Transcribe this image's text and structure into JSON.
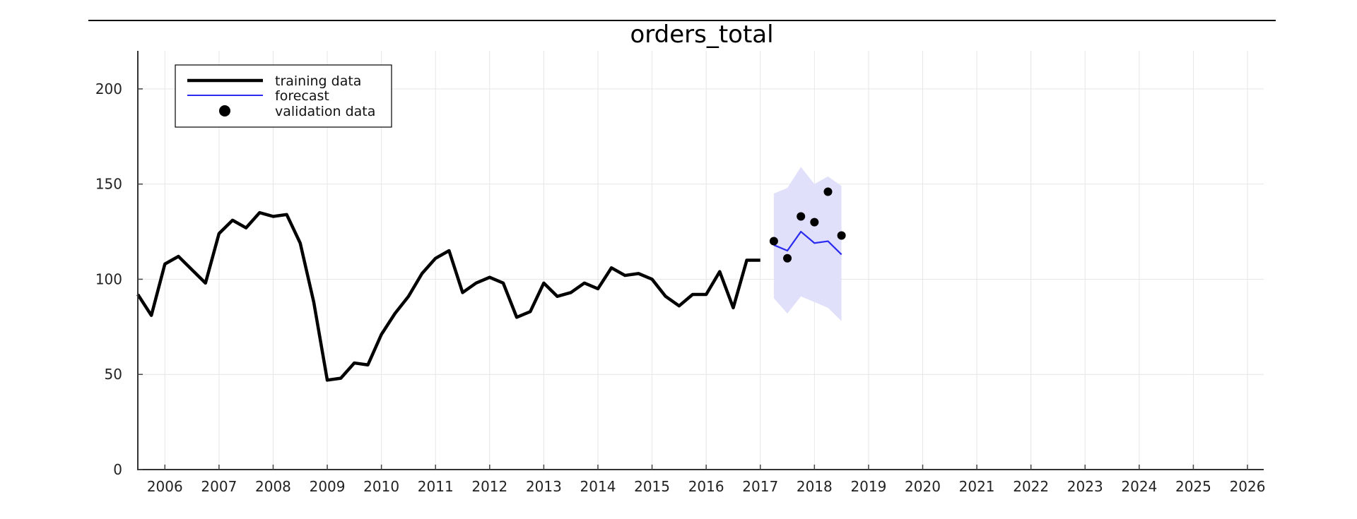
{
  "chart_data": {
    "type": "line",
    "title": "orders_total",
    "xlabel": "",
    "ylabel": "",
    "xlim": [
      2005.5,
      2026.3
    ],
    "ylim": [
      0,
      220
    ],
    "x_ticks": [
      2006,
      2007,
      2008,
      2009,
      2010,
      2011,
      2012,
      2013,
      2014,
      2015,
      2016,
      2017,
      2018,
      2019,
      2020,
      2021,
      2022,
      2023,
      2024,
      2025,
      2026
    ],
    "x_tick_labels": [
      "2006",
      "2007",
      "2008",
      "2009",
      "2010",
      "2011",
      "2012",
      "2013",
      "2014",
      "2015",
      "2016",
      "2017",
      "2018",
      "2019",
      "2020",
      "2021",
      "2022",
      "2023",
      "2024",
      "2025",
      "2026"
    ],
    "y_ticks": [
      0,
      50,
      100,
      150,
      200
    ],
    "y_tick_labels": [
      "0",
      "50",
      "100",
      "150",
      "200"
    ],
    "grid": true,
    "legend_position": "top-left",
    "series": [
      {
        "name": "training data",
        "kind": "line",
        "color": "#000000",
        "x": [
          2005.5,
          2005.75,
          2006.0,
          2006.25,
          2006.5,
          2006.75,
          2007.0,
          2007.25,
          2007.5,
          2007.75,
          2008.0,
          2008.25,
          2008.5,
          2008.75,
          2009.0,
          2009.25,
          2009.5,
          2009.75,
          2010.0,
          2010.25,
          2010.5,
          2010.75,
          2011.0,
          2011.25,
          2011.5,
          2011.75,
          2012.0,
          2012.25,
          2012.5,
          2012.75,
          2013.0,
          2013.25,
          2013.5,
          2013.75,
          2014.0,
          2014.25,
          2014.5,
          2014.75,
          2015.0,
          2015.25,
          2015.5,
          2015.75,
          2016.0,
          2016.25,
          2016.5,
          2016.75,
          2017.0
        ],
        "y": [
          92,
          81,
          108,
          112,
          105,
          98,
          124,
          131,
          127,
          135,
          133,
          134,
          119,
          88,
          47,
          48,
          56,
          55,
          71,
          82,
          91,
          103,
          111,
          115,
          93,
          98,
          101,
          98,
          80,
          83,
          98,
          91,
          93,
          98,
          95,
          106,
          102,
          103,
          100,
          91,
          86,
          92,
          92,
          104,
          85,
          110,
          110
        ]
      },
      {
        "name": "forecast",
        "kind": "line",
        "color": "#2a2af0",
        "x": [
          2017.25,
          2017.5,
          2017.75,
          2018.0,
          2018.25,
          2018.5
        ],
        "y": [
          118,
          115,
          125,
          119,
          120,
          113
        ],
        "band_upper": [
          145,
          148,
          159,
          150,
          154,
          149
        ],
        "band_lower": [
          90,
          82,
          91,
          88,
          85,
          78
        ],
        "band_color": "#e0e0fa"
      },
      {
        "name": "validation data",
        "kind": "scatter",
        "color": "#000000",
        "x": [
          2017.25,
          2017.5,
          2017.75,
          2018.0,
          2018.25,
          2018.5
        ],
        "y": [
          120,
          111,
          133,
          130,
          146,
          123
        ]
      }
    ]
  }
}
